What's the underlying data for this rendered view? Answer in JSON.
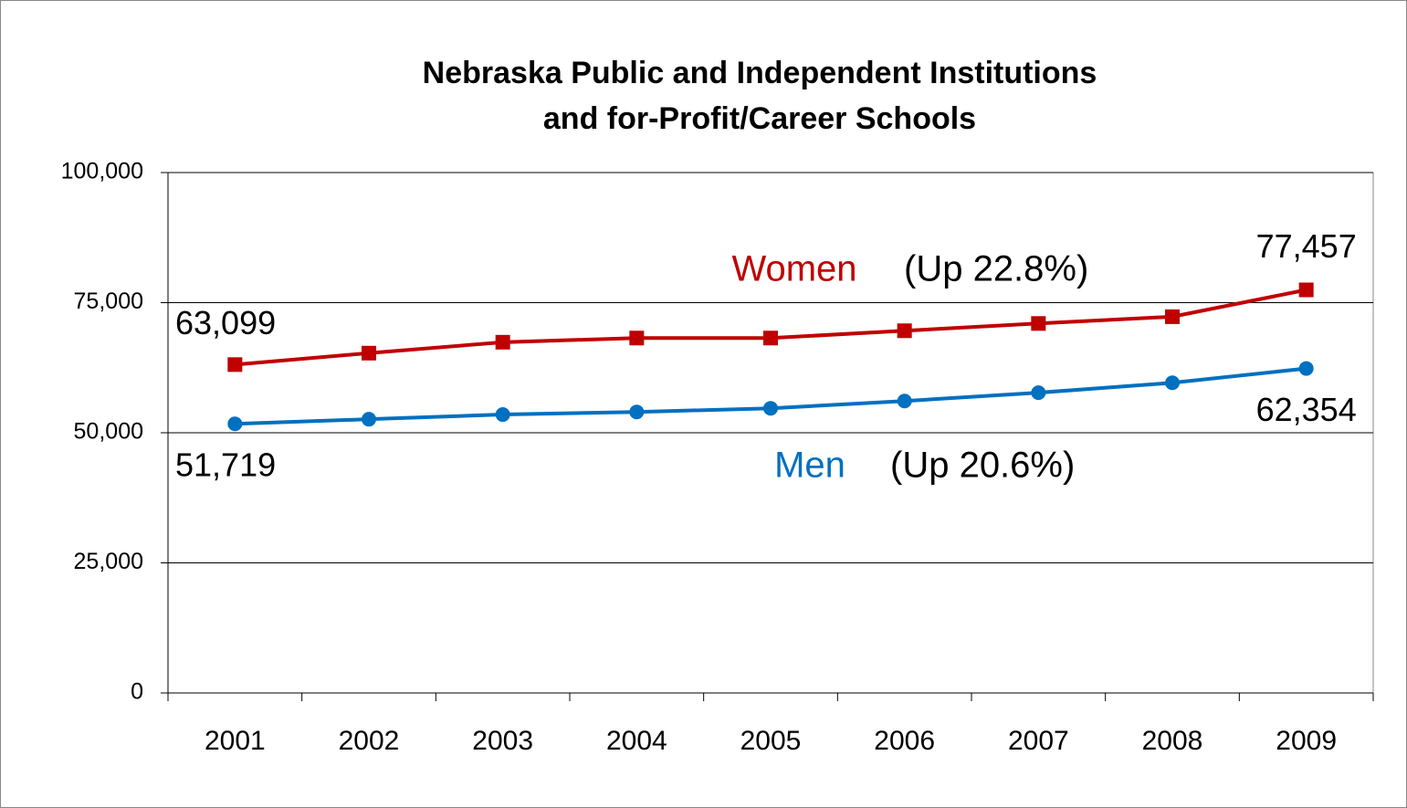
{
  "chart_data": {
    "type": "line",
    "title": [
      "Nebraska Public and Independent Institutions",
      "and for-Profit/Career Schools"
    ],
    "categories": [
      "2001",
      "2002",
      "2003",
      "2004",
      "2005",
      "2006",
      "2007",
      "2008",
      "2009"
    ],
    "series": [
      {
        "name": "Women",
        "color": "#c00000",
        "marker": "square",
        "values": [
          63099,
          65300,
          67400,
          68200,
          68200,
          69600,
          71000,
          72300,
          77457
        ],
        "value_labels": [
          "63,099",
          null,
          null,
          null,
          null,
          null,
          null,
          null,
          "77,457"
        ],
        "annotation": "(Up 22.8%)"
      },
      {
        "name": "Men",
        "color": "#0070c0",
        "marker": "circle",
        "values": [
          51719,
          52600,
          53500,
          54000,
          54700,
          56100,
          57700,
          59600,
          62354
        ],
        "value_labels": [
          "51,719",
          null,
          null,
          null,
          null,
          null,
          null,
          null,
          "62,354"
        ],
        "annotation": "(Up 20.6%)"
      }
    ],
    "ylim": [
      0,
      100000
    ],
    "yticks": [
      0,
      {
        "value": 25000,
        "label": "25,000"
      },
      {
        "value": 50000,
        "label": "50,000"
      },
      {
        "value": 75000,
        "label": "75,000"
      },
      {
        "value": 100000,
        "label": "100,000"
      }
    ],
    "grid": true
  }
}
